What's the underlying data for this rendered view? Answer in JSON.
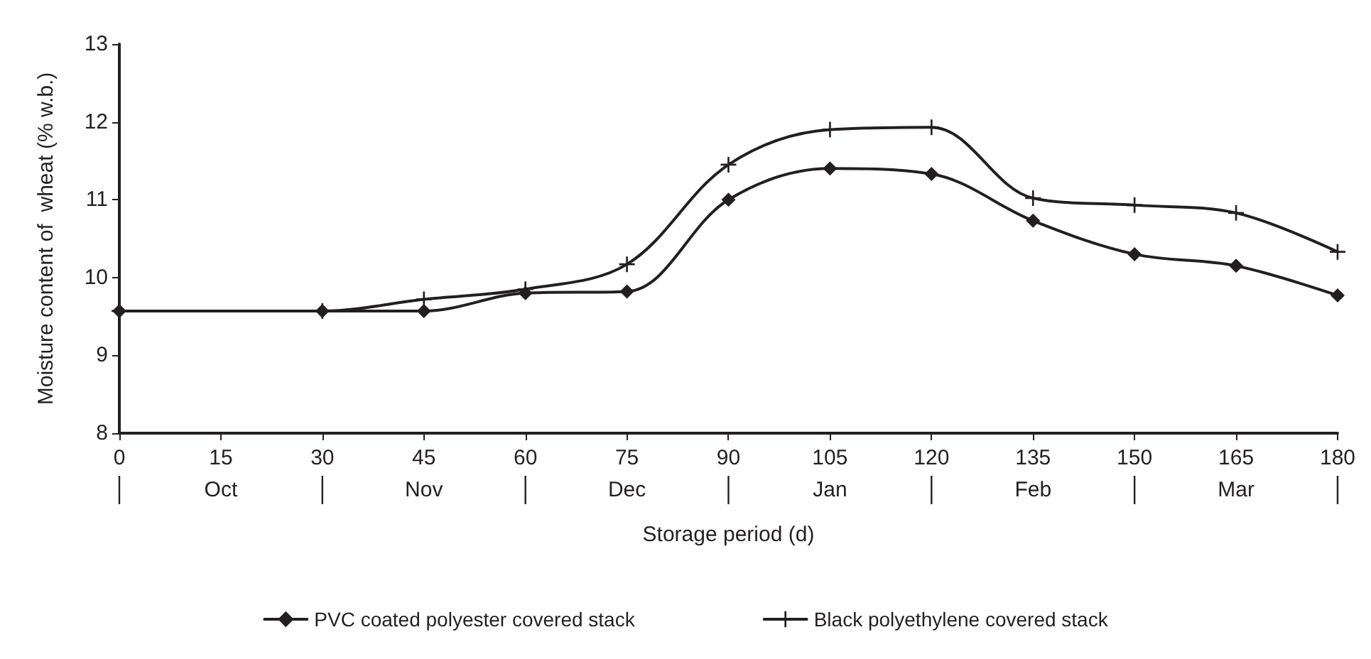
{
  "chart_data": {
    "type": "line",
    "xlabel": "Storage period (d)",
    "ylabel": "Moisture content of  wheat (% w.b.)",
    "x": [
      0,
      30,
      45,
      60,
      75,
      90,
      105,
      120,
      135,
      150,
      165,
      180
    ],
    "series": [
      {
        "name": "PVC coated polyester covered stack",
        "color": "#231f20",
        "marker": "diamond",
        "values": [
          9.57,
          9.57,
          9.57,
          9.8,
          9.82,
          11.0,
          11.4,
          11.33,
          10.73,
          10.3,
          10.15,
          9.77
        ]
      },
      {
        "name": "Black polyethylene covered stack",
        "color": "#231f20",
        "marker": "cross",
        "values": [
          9.57,
          9.57,
          9.72,
          9.85,
          10.17,
          11.45,
          11.9,
          11.93,
          11.02,
          10.93,
          10.83,
          10.33
        ]
      }
    ],
    "xlim": [
      0,
      180
    ],
    "xticks": [
      0,
      15,
      30,
      45,
      60,
      75,
      90,
      105,
      120,
      135,
      150,
      165,
      180
    ],
    "ylim": [
      8,
      13
    ],
    "yticks": [
      8,
      9,
      10,
      11,
      12,
      13
    ],
    "annotations": [
      "Oct",
      "Nov",
      "Dec",
      "Jan",
      "Feb",
      "Mar"
    ],
    "grid": false,
    "legend": "bottom",
    "line_style": "solid"
  }
}
